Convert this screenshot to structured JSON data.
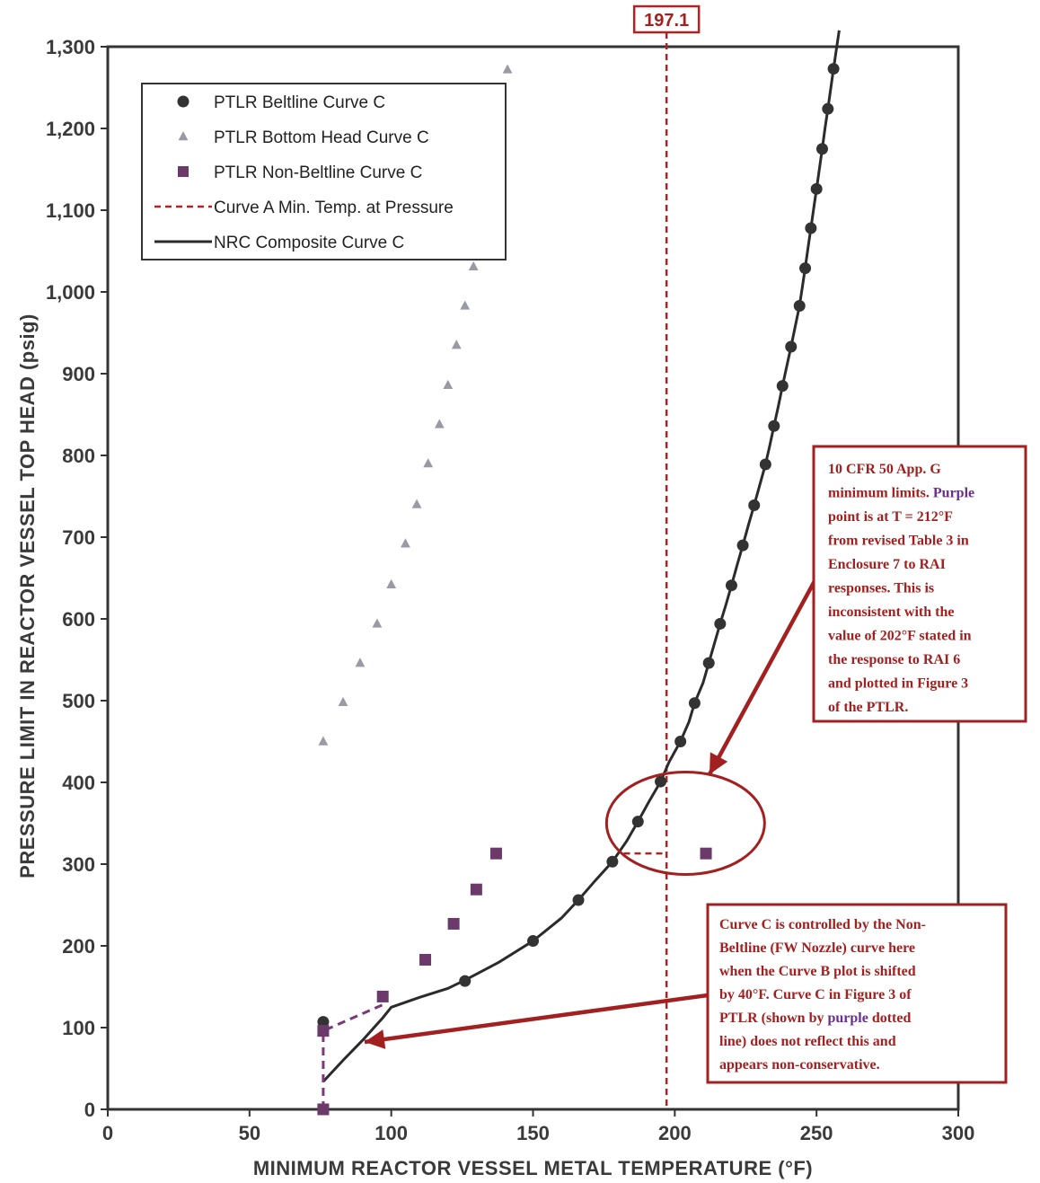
{
  "chart_data": {
    "type": "scatter",
    "xlabel": "MINIMUM REACTOR VESSEL METAL TEMPERATURE (°F)",
    "ylabel": "PRESSURE LIMIT IN REACTOR VESSEL TOP HEAD (psig)",
    "xlim": [
      0,
      300
    ],
    "ylim": [
      0,
      1300
    ],
    "x_ticks": [
      "0",
      "50",
      "100",
      "150",
      "200",
      "250",
      "300"
    ],
    "y_ticks": [
      "0",
      "100",
      "200",
      "300",
      "400",
      "500",
      "600",
      "700",
      "800",
      "900",
      "1,000",
      "1,100",
      "1,200",
      "1,300"
    ],
    "grid": true,
    "legend_position": "top-left",
    "legend": [
      "PTLR Beltline Curve C",
      "PTLR Bottom Head Curve C",
      "PTLR Non-Beltline Curve C",
      "Curve A Min. Temp. at Pressure",
      "NRC Composite Curve C"
    ],
    "colors": {
      "beltline": "#333333",
      "bottom_head": "#9a9aa6",
      "non_beltline": "#6b3a6b",
      "min_temp_line": "#b22222",
      "composite": "#2b2b2b",
      "callout": "#a32020",
      "purple_dashed": "#7a3a7a"
    },
    "series": [
      {
        "name": "PTLR Beltline Curve C",
        "marker": "circle",
        "points": [
          [
            76,
            0
          ],
          [
            76,
            107
          ],
          [
            126,
            157
          ],
          [
            150,
            206
          ],
          [
            166,
            256
          ],
          [
            178,
            303
          ],
          [
            187,
            352
          ],
          [
            195,
            401
          ],
          [
            202,
            450
          ],
          [
            207,
            497
          ],
          [
            212,
            546
          ],
          [
            216,
            594
          ],
          [
            220,
            641
          ],
          [
            224,
            690
          ],
          [
            228,
            739
          ],
          [
            232,
            789
          ],
          [
            235,
            836
          ],
          [
            238,
            885
          ],
          [
            241,
            933
          ],
          [
            244,
            983
          ],
          [
            246,
            1029
          ],
          [
            248,
            1078
          ],
          [
            250,
            1126
          ],
          [
            252,
            1175
          ],
          [
            254,
            1224
          ],
          [
            256,
            1273
          ]
        ]
      },
      {
        "name": "PTLR Bottom Head Curve C",
        "marker": "triangle",
        "points": [
          [
            76,
            450
          ],
          [
            83,
            498
          ],
          [
            89,
            546
          ],
          [
            95,
            594
          ],
          [
            100,
            642
          ],
          [
            105,
            692
          ],
          [
            109,
            740
          ],
          [
            113,
            790
          ],
          [
            117,
            838
          ],
          [
            120,
            886
          ],
          [
            123,
            935
          ],
          [
            126,
            983
          ],
          [
            129,
            1031
          ],
          [
            141,
            1272
          ]
        ]
      },
      {
        "name": "PTLR Non-Beltline Curve C",
        "marker": "square",
        "points": [
          [
            76,
            0
          ],
          [
            76,
            96
          ],
          [
            97,
            138
          ],
          [
            112,
            183
          ],
          [
            122,
            227
          ],
          [
            130,
            269
          ],
          [
            137,
            313
          ],
          [
            211,
            313
          ]
        ]
      },
      {
        "name": "Curve A Min. Temp. at Pressure",
        "style": "dashed",
        "x_value": 197.1
      },
      {
        "name": "NRC Composite Curve C",
        "style": "line",
        "points": [
          [
            76,
            34
          ],
          [
            83,
            60
          ],
          [
            90,
            85
          ],
          [
            97,
            112
          ],
          [
            100,
            125
          ],
          [
            110,
            137
          ],
          [
            120,
            148
          ],
          [
            126,
            158
          ],
          [
            138,
            180
          ],
          [
            150,
            206
          ],
          [
            160,
            234
          ],
          [
            166,
            256
          ],
          [
            172,
            280
          ],
          [
            178,
            303
          ],
          [
            183,
            328
          ],
          [
            187,
            352
          ],
          [
            191,
            377
          ],
          [
            195,
            401
          ],
          [
            198,
            425
          ],
          [
            202,
            450
          ],
          [
            205,
            474
          ],
          [
            207,
            497
          ],
          [
            210,
            522
          ],
          [
            212,
            546
          ],
          [
            214,
            570
          ],
          [
            216,
            594
          ],
          [
            218,
            617
          ],
          [
            220,
            641
          ],
          [
            222,
            666
          ],
          [
            224,
            690
          ],
          [
            226,
            715
          ],
          [
            228,
            739
          ],
          [
            230,
            764
          ],
          [
            232,
            789
          ],
          [
            233.5,
            812
          ],
          [
            235,
            836
          ],
          [
            236.5,
            860
          ],
          [
            238,
            885
          ],
          [
            239.5,
            909
          ],
          [
            241,
            933
          ],
          [
            242.5,
            958
          ],
          [
            244,
            983
          ],
          [
            245,
            1006
          ],
          [
            246,
            1029
          ],
          [
            247,
            1054
          ],
          [
            248,
            1078
          ],
          [
            249,
            1102
          ],
          [
            250,
            1126
          ],
          [
            251,
            1150
          ],
          [
            252,
            1175
          ],
          [
            253,
            1200
          ],
          [
            254,
            1224
          ],
          [
            255,
            1248
          ],
          [
            256,
            1273
          ],
          [
            258,
            1320
          ]
        ]
      }
    ],
    "annotations": {
      "min_temp_label": "197.1",
      "purple_dotted_line": [
        [
          76,
          0
        ],
        [
          76,
          96
        ],
        [
          97,
          128
        ]
      ],
      "highlight_ellipse_center": [
        200,
        350
      ],
      "dash_segment_300": [
        [
          182,
          313
        ],
        [
          197.1,
          313
        ]
      ],
      "callout_1": {
        "lines": [
          [
            {
              "t": "10 CFR 50 App. G"
            }
          ],
          [
            {
              "t": "minimum limits. "
            },
            {
              "t": "Purple",
              "purple": true
            }
          ],
          [
            {
              "t": "point is at T = 212°F"
            }
          ],
          [
            {
              "t": "from revised Table 3 in"
            }
          ],
          [
            {
              "t": "Enclosure 7 to RAI"
            }
          ],
          [
            {
              "t": "responses.  This is"
            }
          ],
          [
            {
              "t": "inconsistent with the"
            }
          ],
          [
            {
              "t": "value of 202°F stated in"
            }
          ],
          [
            {
              "t": "the response to RAI 6"
            }
          ],
          [
            {
              "t": "and plotted in Figure 3"
            }
          ],
          [
            {
              "t": "of the PTLR."
            }
          ]
        ]
      },
      "callout_2": {
        "lines": [
          [
            {
              "t": "Curve C is controlled by the Non-"
            }
          ],
          [
            {
              "t": "Beltline (FW Nozzle) curve here"
            }
          ],
          [
            {
              "t": "when the Curve B plot is shifted"
            }
          ],
          [
            {
              "t": "by 40°F.  Curve C in Figure 3 of"
            }
          ],
          [
            {
              "t": "PTLR (shown by "
            },
            {
              "t": "purple",
              "purple": true
            },
            {
              "t": " dotted"
            }
          ],
          [
            {
              "t": "line) does not reflect this and"
            }
          ],
          [
            {
              "t": "appears non-conservative."
            }
          ]
        ]
      }
    }
  }
}
